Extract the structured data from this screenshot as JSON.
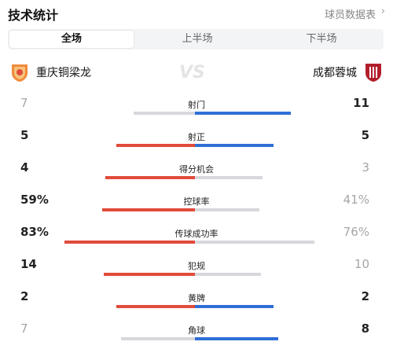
{
  "header": {
    "title": "技术统计",
    "report_link": "球员数据表"
  },
  "tabs": [
    {
      "label": "全场",
      "active": true
    },
    {
      "label": "上半场",
      "active": false
    },
    {
      "label": "下半场",
      "active": false
    }
  ],
  "teams": {
    "home": {
      "name": "重庆铜梁龙",
      "color": "#e14b3b"
    },
    "away": {
      "name": "成都蓉城",
      "color": "#2f6fd6"
    },
    "vs": "VS"
  },
  "stats": [
    {
      "label": "射门",
      "home": "7",
      "away": "11",
      "home_share": 0.39,
      "away_share": 0.61,
      "leader": "away"
    },
    {
      "label": "射正",
      "home": "5",
      "away": "5",
      "home_share": 0.5,
      "away_share": 0.5,
      "leader": "both"
    },
    {
      "label": "得分机会",
      "home": "4",
      "away": "3",
      "home_share": 0.57,
      "away_share": 0.43,
      "leader": "home"
    },
    {
      "label": "控球率",
      "home": "59%",
      "away": "41%",
      "home_share": 0.59,
      "away_share": 0.41,
      "leader": "home"
    },
    {
      "label": "传球成功率",
      "home": "83%",
      "away": "76%",
      "home_share": 0.83,
      "away_share": 0.76,
      "leader": "home"
    },
    {
      "label": "犯规",
      "home": "14",
      "away": "10",
      "home_share": 0.58,
      "away_share": 0.42,
      "leader": "home"
    },
    {
      "label": "黄牌",
      "home": "2",
      "away": "2",
      "home_share": 0.5,
      "away_share": 0.5,
      "leader": "both"
    },
    {
      "label": "角球",
      "home": "7",
      "away": "8",
      "home_share": 0.47,
      "away_share": 0.53,
      "leader": "away"
    }
  ]
}
